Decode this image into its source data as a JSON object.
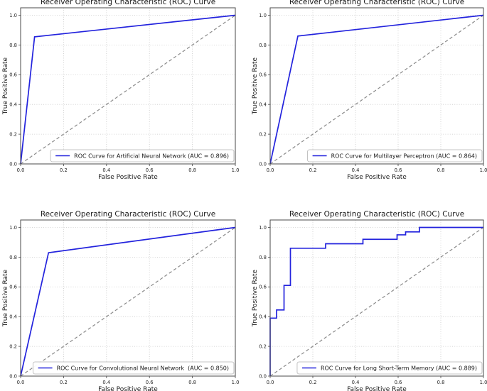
{
  "colors": {
    "roc_curve": "#2323dd",
    "chance_diagonal": "#8a8a8a",
    "grid": "#c9c9c9",
    "spine": "#4a4a4a",
    "legend_border": "#b3b3b3",
    "text": "#1a1a1a",
    "background": "#ffffff"
  },
  "chart_data": [
    {
      "type": "line",
      "title": "Receiver Operating Characteristic (ROC) Curve",
      "xlabel": "False Positive Rate",
      "ylabel": "True Positive Rate",
      "xlim": [
        0.0,
        1.0
      ],
      "ylim": [
        0.0,
        1.05
      ],
      "x_ticks": [
        0.0,
        0.2,
        0.4,
        0.6,
        0.8,
        1.0
      ],
      "y_ticks": [
        0.0,
        0.2,
        0.4,
        0.6,
        0.8,
        1.0
      ],
      "x_tick_labels": [
        "0.0",
        "0.2",
        "0.4",
        "0.6",
        "0.8",
        "1.0"
      ],
      "y_tick_labels": [
        "0.0",
        "0.2",
        "0.4",
        "0.6",
        "0.8",
        "1.0"
      ],
      "grid": "dotted",
      "legend_position": "lower right",
      "model": "Artificial Neural Network",
      "auc": 0.896,
      "legend_label": "ROC Curve for Artificial Neural Network (AUC = 0.896)",
      "series": [
        {
          "name": "roc-curve",
          "color": "#2323dd",
          "style": "solid",
          "points": [
            [
              0.0,
              0.0
            ],
            [
              0.065,
              0.855
            ],
            [
              1.0,
              1.0
            ]
          ]
        },
        {
          "name": "chance-diagonal",
          "color": "#8a8a8a",
          "style": "dashed",
          "points": [
            [
              0.0,
              0.0
            ],
            [
              1.0,
              1.0
            ]
          ]
        }
      ]
    },
    {
      "type": "line",
      "title": "Receiver Operating Characteristic (ROC) Curve",
      "xlabel": "False Positive Rate",
      "ylabel": "True Positive Rate",
      "xlim": [
        0.0,
        1.0
      ],
      "ylim": [
        0.0,
        1.05
      ],
      "x_ticks": [
        0.0,
        0.2,
        0.4,
        0.6,
        0.8,
        1.0
      ],
      "y_ticks": [
        0.0,
        0.2,
        0.4,
        0.6,
        0.8,
        1.0
      ],
      "x_tick_labels": [
        "0.0",
        "0.2",
        "0.4",
        "0.6",
        "0.8",
        "1.0"
      ],
      "y_tick_labels": [
        "0.0",
        "0.2",
        "0.4",
        "0.6",
        "0.8",
        "1.0"
      ],
      "grid": "dotted",
      "legend_position": "lower right",
      "model": "Multilayer Perceptron",
      "auc": 0.864,
      "legend_label": "ROC Curve for Multilayer Perceptron (AUC = 0.864)",
      "series": [
        {
          "name": "roc-curve",
          "color": "#2323dd",
          "style": "solid",
          "points": [
            [
              0.0,
              0.0
            ],
            [
              0.13,
              0.86
            ],
            [
              1.0,
              1.0
            ]
          ]
        },
        {
          "name": "chance-diagonal",
          "color": "#8a8a8a",
          "style": "dashed",
          "points": [
            [
              0.0,
              0.0
            ],
            [
              1.0,
              1.0
            ]
          ]
        }
      ]
    },
    {
      "type": "line",
      "title": "Receiver Operating Characteristic (ROC) Curve",
      "xlabel": "False Positive Rate",
      "ylabel": "True Positive Rate",
      "xlim": [
        0.0,
        1.0
      ],
      "ylim": [
        0.0,
        1.05
      ],
      "x_ticks": [
        0.0,
        0.2,
        0.4,
        0.6,
        0.8,
        1.0
      ],
      "y_ticks": [
        0.0,
        0.2,
        0.4,
        0.6,
        0.8,
        1.0
      ],
      "x_tick_labels": [
        "0.0",
        "0.2",
        "0.4",
        "0.6",
        "0.8",
        "1.0"
      ],
      "y_tick_labels": [
        "0.0",
        "0.2",
        "0.4",
        "0.6",
        "0.8",
        "1.0"
      ],
      "grid": "dotted",
      "legend_position": "lower right",
      "model": "Convolutional Neural Network",
      "auc": 0.85,
      "legend_label": "ROC Curve for Convolutional Neural Network  (AUC = 0.850)",
      "series": [
        {
          "name": "roc-curve",
          "color": "#2323dd",
          "style": "solid",
          "points": [
            [
              0.0,
              0.0
            ],
            [
              0.13,
              0.83
            ],
            [
              1.0,
              1.0
            ]
          ]
        },
        {
          "name": "chance-diagonal",
          "color": "#8a8a8a",
          "style": "dashed",
          "points": [
            [
              0.0,
              0.0
            ],
            [
              1.0,
              1.0
            ]
          ]
        }
      ]
    },
    {
      "type": "line",
      "title": "Receiver Operating Characteristic (ROC) Curve",
      "xlabel": "False Positive Rate",
      "ylabel": "True Positive Rate",
      "xlim": [
        0.0,
        1.0
      ],
      "ylim": [
        0.0,
        1.05
      ],
      "x_ticks": [
        0.0,
        0.2,
        0.4,
        0.6,
        0.8,
        1.0
      ],
      "y_ticks": [
        0.0,
        0.2,
        0.4,
        0.6,
        0.8,
        1.0
      ],
      "x_tick_labels": [
        "0.0",
        "0.2",
        "0.4",
        "0.6",
        "0.8",
        "1.0"
      ],
      "y_tick_labels": [
        "0.0",
        "0.2",
        "0.4",
        "0.6",
        "0.8",
        "1.0"
      ],
      "grid": "dotted",
      "legend_position": "lower right",
      "model": "Long Short-Term Memory",
      "auc": 0.889,
      "legend_label": "ROC Curve for Long Short-Term Memory (AUC = 0.889)",
      "series": [
        {
          "name": "roc-curve",
          "color": "#2323dd",
          "style": "solid",
          "points": [
            [
              0.0,
              0.0
            ],
            [
              0.0,
              0.39
            ],
            [
              0.03,
              0.39
            ],
            [
              0.03,
              0.445
            ],
            [
              0.065,
              0.445
            ],
            [
              0.065,
              0.61
            ],
            [
              0.095,
              0.61
            ],
            [
              0.095,
              0.86
            ],
            [
              0.26,
              0.86
            ],
            [
              0.26,
              0.89
            ],
            [
              0.435,
              0.89
            ],
            [
              0.435,
              0.92
            ],
            [
              0.595,
              0.92
            ],
            [
              0.595,
              0.95
            ],
            [
              0.635,
              0.95
            ],
            [
              0.635,
              0.97
            ],
            [
              0.7,
              0.97
            ],
            [
              0.7,
              1.0
            ],
            [
              1.0,
              1.0
            ]
          ]
        },
        {
          "name": "chance-diagonal",
          "color": "#8a8a8a",
          "style": "dashed",
          "points": [
            [
              0.0,
              0.0
            ],
            [
              1.0,
              1.0
            ]
          ]
        }
      ]
    }
  ]
}
